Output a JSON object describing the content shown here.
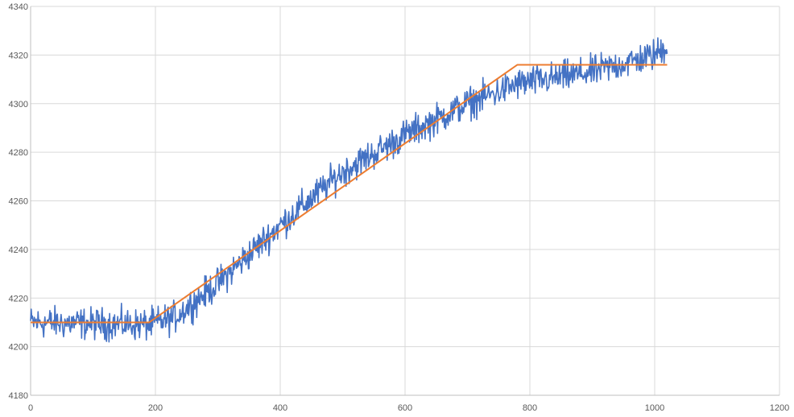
{
  "chart_data": {
    "type": "line",
    "title": "",
    "xlabel": "",
    "ylabel": "",
    "xlim": [
      0,
      1200
    ],
    "ylim": [
      4180,
      4340
    ],
    "x_ticks": [
      0,
      200,
      400,
      600,
      800,
      1000,
      1200
    ],
    "y_ticks": [
      4180,
      4200,
      4220,
      4240,
      4260,
      4280,
      4300,
      4320,
      4340
    ],
    "grid": true,
    "legend": "none",
    "series": [
      {
        "color": "#4472c4",
        "noise_amplitude": 4,
        "n_points": 1024,
        "trend_points": [
          [
            0,
            4210
          ],
          [
            190,
            4209
          ],
          [
            230,
            4212
          ],
          [
            300,
            4226
          ],
          [
            400,
            4250
          ],
          [
            500,
            4272
          ],
          [
            600,
            4287
          ],
          [
            700,
            4300
          ],
          [
            780,
            4308
          ],
          [
            900,
            4313
          ],
          [
            1000,
            4320
          ],
          [
            1020,
            4324
          ]
        ]
      },
      {
        "color": "#ed7d31",
        "points": [
          [
            0,
            4210
          ],
          [
            190,
            4210
          ],
          [
            780,
            4316
          ],
          [
            1020,
            4316
          ]
        ]
      }
    ]
  }
}
